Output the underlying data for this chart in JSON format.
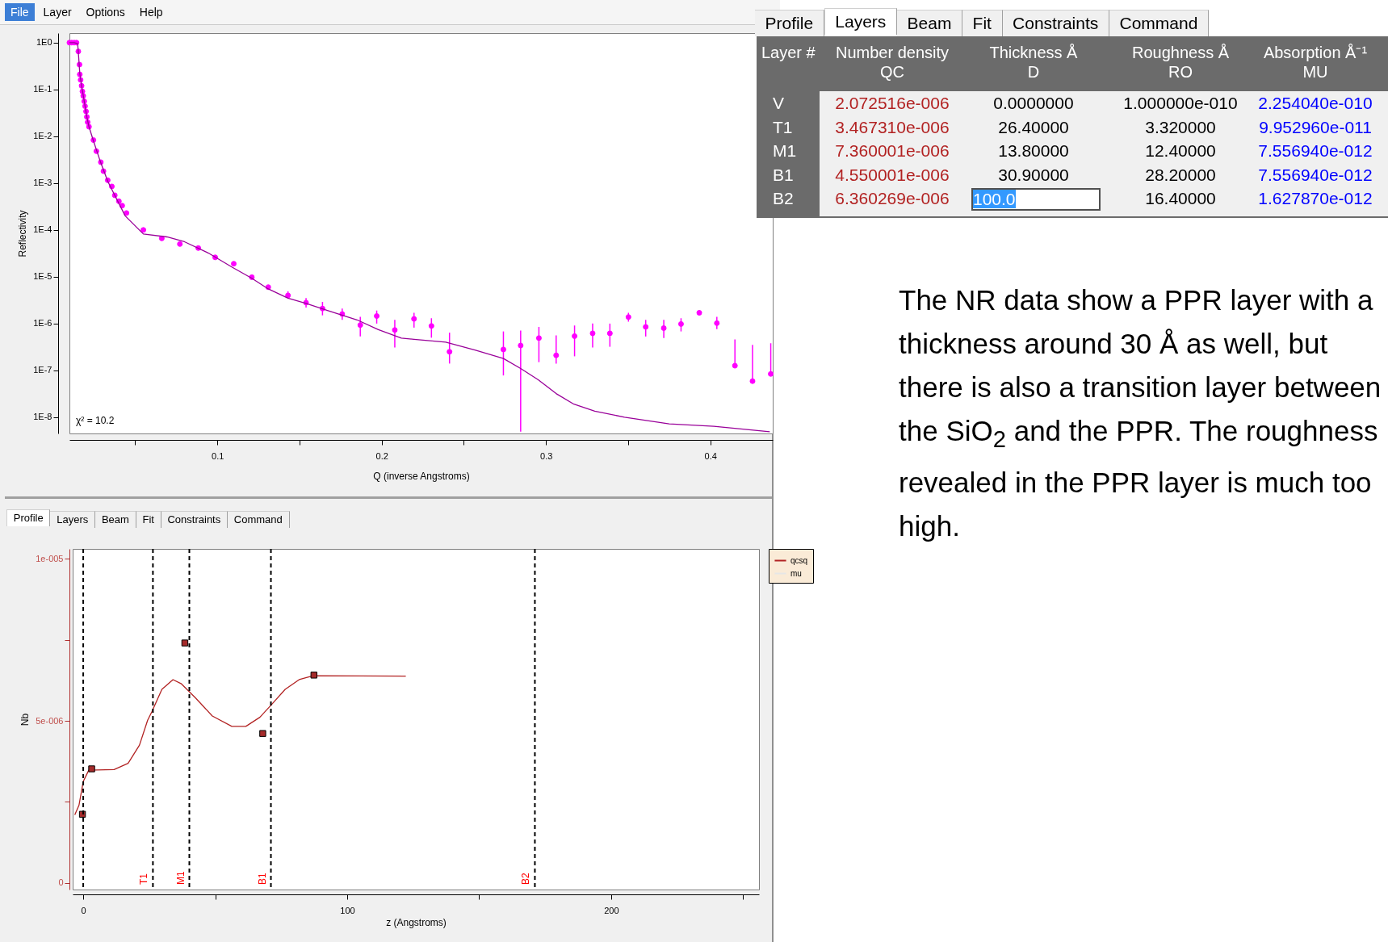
{
  "chart_data": [
    {
      "type": "other",
      "annotations": [
        "File",
        "Layer",
        "Options",
        "Help"
      ]
    },
    {
      "type": "scatter",
      "xlabel": "Q (inverse Angstroms)",
      "ylabel": "Reflectivity",
      "log": "y",
      "xlim": [
        0.01,
        0.438
      ],
      "ylim": [
        4.5e-09,
        1.6
      ],
      "xticks": [
        {
          "value": 0.05,
          "label": null
        },
        0.1,
        {
          "value": 0.15,
          "label": null
        },
        0.2,
        {
          "value": 0.25,
          "label": null
        },
        0.3,
        {
          "value": 0.35,
          "label": null
        },
        0.4
      ],
      "yticks": [
        {
          "value": 1,
          "label": "1E0"
        },
        {
          "value": 0.1,
          "label": "1E-1"
        },
        {
          "value": 0.01,
          "label": "1E-2"
        },
        {
          "value": 0.001,
          "label": "1E-3"
        },
        {
          "value": 0.0001,
          "label": "1E-4"
        },
        {
          "value": 1e-05,
          "label": "1E-5"
        },
        {
          "value": 1e-06,
          "label": "1E-6"
        },
        {
          "value": 1e-07,
          "label": "1E-7"
        },
        {
          "value": 1e-08,
          "label": "1E-8"
        }
      ],
      "annotations": [
        "χ² = 10.2"
      ],
      "series": [
        {
          "type": "scatter",
          "marker": "circle",
          "color": "#ff00ff",
          "x": [
            0.01,
            0.0114,
            0.0129,
            0.0143,
            0.0154,
            0.0161,
            0.0163,
            0.0168,
            0.0174,
            0.0179,
            0.0184,
            0.019,
            0.0195,
            0.0201,
            0.0206,
            0.0211,
            0.0219,
            0.0246,
            0.0264,
            0.0291,
            0.0307,
            0.0333,
            0.0358,
            0.0376,
            0.0401,
            0.0421,
            0.0447,
            0.055,
            0.0662,
            0.0772,
            0.0884,
            0.0987,
            0.11,
            0.121,
            0.131,
            0.143,
            0.154,
            0.164,
            0.176,
            0.187,
            0.197,
            0.208,
            0.2197,
            0.2303,
            0.2413,
            0.2741,
            0.2846,
            0.2957,
            0.3062,
            0.3174,
            0.3284,
            0.3389,
            0.3502,
            0.3607,
            0.3717,
            0.3822,
            0.3933,
            0.404,
            0.415,
            0.4257,
            0.4368
          ],
          "values": [
            1.0,
            1.0,
            1.0,
            1.0,
            0.65,
            0.34,
            0.21,
            0.16,
            0.12,
            0.091,
            0.073,
            0.056,
            0.044,
            0.034,
            0.026,
            0.02,
            0.016,
            0.0083,
            0.0048,
            0.0028,
            0.0018,
            0.00115,
            0.00085,
            0.00055,
            0.00041,
            0.00033,
            0.00023,
            0.0001,
            6.6e-05,
            5e-05,
            4.1e-05,
            2.6e-05,
            1.9e-05,
            9.8e-06,
            6e-06,
            4e-06,
            2.8e-06,
            2.1e-06,
            1.6e-06,
            9.3e-07,
            1.45e-06,
            7.3e-07,
            1.26e-06,
            8.9e-07,
            2.5e-07,
            2.8e-07,
            3.4e-07,
            4.9e-07,
            2.1e-07,
            5.4e-07,
            6.2e-07,
            6.2e-07,
            1.38e-06,
            8.5e-07,
            8e-07,
            9.8e-07,
            1.7e-06,
            1.02e-06,
            1.26e-07,
            5.9e-08,
            8.4e-08
          ],
          "errors": [
            null,
            null,
            null,
            null,
            null,
            null,
            null,
            null,
            null,
            null,
            null,
            null,
            null,
            null,
            null,
            null,
            null,
            null,
            null,
            null,
            null,
            null,
            null,
            null,
            null,
            null,
            null,
            null,
            null,
            null,
            null,
            null,
            null,
            null,
            null,
            [
              3.5e-06,
              4.9e-06
            ],
            [
              2.2e-06,
              3.5e-06
            ],
            [
              1.5e-06,
              2.9e-06
            ],
            [
              1.2e-06,
              2.1e-06
            ],
            [
              5.3e-07,
              1.4e-06
            ],
            [
              1e-06,
              1.9e-06
            ],
            [
              3.1e-07,
              1.2e-06
            ],
            [
              8.2e-07,
              1.7e-06
            ],
            [
              5e-07,
              1.3e-06
            ],
            [
              1.4e-07,
              6.4e-07
            ],
            [
              7.8e-08,
              6.8e-07
            ],
            [
              4.9e-09,
              7.1e-07
            ],
            [
              1.5e-07,
              8.5e-07
            ],
            [
              1.4e-07,
              5.6e-07
            ],
            [
              2e-07,
              9.1e-07
            ],
            [
              3.1e-07,
              1e-06
            ],
            [
              3.2e-07,
              1e-06
            ],
            [
              1.1e-06,
              1.7e-06
            ],
            [
              5.3e-07,
              1.2e-06
            ],
            [
              4.9e-07,
              1.2e-06
            ],
            [
              6.8e-07,
              1.3e-06
            ],
            null,
            [
              7.6e-07,
              1.4e-06
            ],
            [
              1.26e-07,
              4.6e-07
            ],
            [
              5.9e-08,
              3.5e-07
            ],
            [
              8.4e-08,
              3.8e-07
            ]
          ]
        },
        {
          "type": "line",
          "color": "#990099",
          "x": [
            0.01,
            0.0129,
            0.015,
            0.0156,
            0.0163,
            0.0174,
            0.019,
            0.0206,
            0.0219,
            0.0246,
            0.0291,
            0.0333,
            0.0376,
            0.0439,
            0.055,
            0.0693,
            0.08,
            0.0946,
            0.109,
            0.121,
            0.131,
            0.143,
            0.154,
            0.167,
            0.185,
            0.198,
            0.212,
            0.2197,
            0.239,
            0.2572,
            0.2741,
            0.2846,
            0.2953,
            0.3062,
            0.317,
            0.3297,
            0.3478,
            0.375,
            0.4022,
            0.4362
          ],
          "values": [
            1.0,
            1.0,
            0.95,
            0.5,
            0.22,
            0.12,
            0.056,
            0.026,
            0.016,
            0.008,
            0.0027,
            0.0011,
            0.00055,
            0.0002,
            8.2e-05,
            7.1e-05,
            5.6e-05,
            3.2e-05,
            1.6e-05,
            9.3e-06,
            5.5e-06,
            3.5e-06,
            2.7e-06,
            1.9e-06,
            1.2e-06,
            7.4e-07,
            4.9e-07,
            4.6e-07,
            4e-07,
            2.7e-07,
            1.8e-07,
            1.1e-07,
            6.3e-08,
            3.2e-08,
            1.9e-08,
            1.35e-08,
            1e-08,
            7.2e-09,
            6.4e-09,
            4.9e-09
          ]
        }
      ]
    },
    {
      "type": "other",
      "annotations": [
        "Profile",
        "Layers",
        "Beam",
        "Fit",
        "Constraints",
        "Command"
      ]
    },
    {
      "type": "other",
      "annotations": [
        "Layer #",
        "Number density\nQC",
        "Thickness Å\nD",
        "Roughness Å\nRO",
        "Absorption Å⁻¹\nMU",
        "V",
        "2.072516e-006",
        "0.0000000",
        "1.000000e-010",
        "2.254040e-010",
        "T1",
        "3.467310e-006",
        "26.40000",
        "3.320000",
        "9.952960e-011",
        "M1",
        "7.360001e-006",
        "13.80000",
        "12.40000",
        "7.556940e-012",
        "B1",
        "4.550001e-006",
        "30.90000",
        "28.20000",
        "7.556940e-012",
        "B2",
        "6.360269e-006",
        "100.0",
        "16.40000",
        "1.627870e-012"
      ]
    },
    {
      "type": "other",
      "annotations": [
        "The NR data show a PPR layer with a thickness around 30 Å as well, but there is also a transition layer between the SiO$_{2}$ and the PPR.  The roughness revealed in the PPR layer is much too high."
      ]
    },
    {
      "type": "other",
      "annotations": [
        "Profile",
        "Layers",
        "Beam",
        "Fit",
        "Constraints",
        "Command"
      ]
    },
    {
      "type": "line",
      "xlabel": "z (Angstroms)",
      "ylabel": "Nb",
      "xlim": [
        -4,
        256
      ],
      "ylim": [
        -2e-07,
        1.03e-05
      ],
      "xticks": [
        0,
        {
          "value": 50,
          "label": null
        },
        100,
        {
          "value": 150,
          "label": null
        },
        200,
        {
          "value": 250,
          "label": null
        }
      ],
      "yticks": [
        0,
        {
          "value": 2.5e-06,
          "label": null
        },
        {
          "value": 5e-06,
          "label": "5e-006"
        },
        {
          "value": 7.5e-06,
          "label": null
        },
        {
          "value": 1e-05,
          "label": "1e-005"
        }
      ],
      "legend": "right",
      "ref_lines": [
        {
          "axis": "x",
          "value": 0,
          "color": "#000000",
          "line_style": "dashed"
        },
        {
          "axis": "x",
          "value": 26.4,
          "label": "T1",
          "color": "#000000",
          "line_style": "dashed"
        },
        {
          "axis": "x",
          "value": 40.2,
          "label": "M1",
          "color": "#000000",
          "line_style": "dashed"
        },
        {
          "axis": "x",
          "value": 71.1,
          "label": "B1",
          "color": "#000000",
          "line_style": "dashed"
        },
        {
          "axis": "x",
          "value": 171.1,
          "label": "B2",
          "color": "#000000",
          "line_style": "dashed"
        }
      ],
      "series": [
        {
          "name": "qcsq",
          "color": "#b22222",
          "x": [
            -3.2,
            -1.6,
            0,
            2.1,
            11.7,
            17,
            21.3,
            24.4,
            26,
            29.8,
            34,
            37.2,
            42.5,
            48.9,
            56.3,
            61.6,
            66.9,
            71.2,
            76.5,
            81.8,
            87.1,
            122.2
          ],
          "values": [
            2.1e-06,
            2.4e-06,
            3.13e-06,
            3.48e-06,
            3.5e-06,
            3.69e-06,
            4.25e-06,
            5.02e-06,
            5.28e-06,
            5.97e-06,
            6.27e-06,
            6.14e-06,
            5.71e-06,
            5.15e-06,
            4.83e-06,
            4.83e-06,
            5.11e-06,
            5.49e-06,
            5.97e-06,
            6.27e-06,
            6.39e-06,
            6.38e-06
          ]
        },
        {
          "name": "mu",
          "color": "#e6e6e6"
        },
        {
          "type": "scatter",
          "marker": "square",
          "color": "#a52a2a",
          "x": [
            -0.3,
            3.2,
            38.5,
            68.0,
            87.4
          ],
          "values": [
            2.12e-06,
            3.52e-06,
            7.4e-06,
            4.61e-06,
            6.41e-06
          ]
        }
      ]
    }
  ]
}
